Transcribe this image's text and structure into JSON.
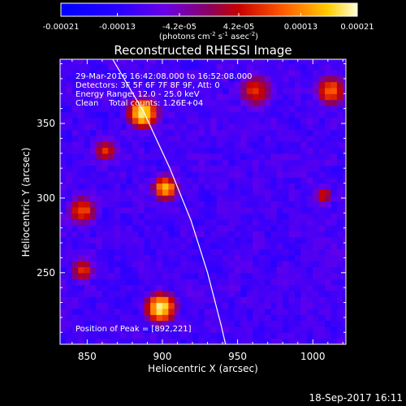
{
  "chart_data": [
    {
      "type": "colorbar",
      "ticks": [
        "-0.00021",
        "-0.00013",
        "-4.2e-05",
        "4.2e-05",
        "0.00013",
        "0.00021"
      ],
      "tick_values": [
        -0.00021,
        -0.00013,
        -4.2e-05,
        4.2e-05,
        0.00013,
        0.00021
      ],
      "range": [
        -0.00021,
        0.00021
      ],
      "label_parts": [
        "(photons cm",
        "-2",
        " s",
        "-1",
        " asec",
        "-2",
        ")"
      ]
    },
    {
      "type": "heatmap",
      "title": "Reconstructed RHESSI Image",
      "xlabel": "Heliocentric X (arcsec)",
      "ylabel": "Heliocentric Y (arcsec)",
      "xlim": [
        832,
        1022
      ],
      "ylim": [
        202,
        393
      ],
      "xticks": [
        850,
        900,
        950,
        1000
      ],
      "yticks": [
        250,
        300,
        350
      ],
      "annotations": [
        "29-Mar-2016 16:42:08.000 to 16:52:08.000",
        "Detectors: 3F 5F 6F 7F 8F 9F, Att: 0",
        "Energy Range: 12.0 - 25.0 keV",
        "Clean    Total counts: 1.26E+04"
      ],
      "peak_label": "Position of Peak = [892,221]",
      "limb_curve": [
        [
          867,
          393
        ],
        [
          888,
          357
        ],
        [
          905,
          320
        ],
        [
          919,
          285
        ],
        [
          930,
          250
        ],
        [
          939,
          215
        ],
        [
          942,
          202
        ]
      ],
      "hot_regions": [
        {
          "x": 885,
          "y": 355,
          "r": 12,
          "level": 1.0
        },
        {
          "x": 900,
          "y": 305,
          "r": 10,
          "level": 0.9
        },
        {
          "x": 897,
          "y": 225,
          "r": 12,
          "level": 1.0
        },
        {
          "x": 845,
          "y": 290,
          "r": 12,
          "level": 0.75
        },
        {
          "x": 860,
          "y": 330,
          "r": 10,
          "level": 0.7
        },
        {
          "x": 845,
          "y": 250,
          "r": 10,
          "level": 0.7
        },
        {
          "x": 960,
          "y": 370,
          "r": 14,
          "level": 0.7
        },
        {
          "x": 1010,
          "y": 370,
          "r": 12,
          "level": 0.8
        },
        {
          "x": 1005,
          "y": 300,
          "r": 8,
          "level": 0.65
        }
      ]
    }
  ],
  "footer": {
    "date": "18-Sep-2017 16:11"
  }
}
